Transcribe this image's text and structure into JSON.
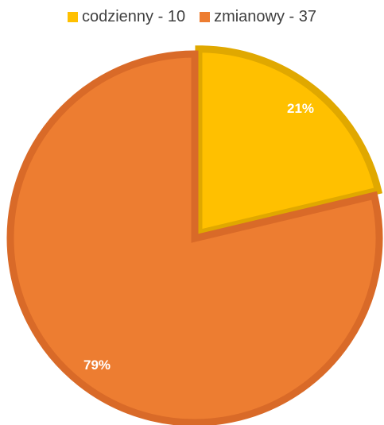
{
  "chart_data": {
    "type": "pie",
    "title": "",
    "legend_position": "top",
    "slices": [
      {
        "label": "codzienny - 10",
        "value": 10,
        "percent_label": "21%",
        "color": "#FFC000",
        "border": "#E0A800"
      },
      {
        "label": "zmianowy - 37",
        "value": 37,
        "percent_label": "79%",
        "color": "#ED7D31",
        "border": "#D96A28"
      }
    ]
  }
}
